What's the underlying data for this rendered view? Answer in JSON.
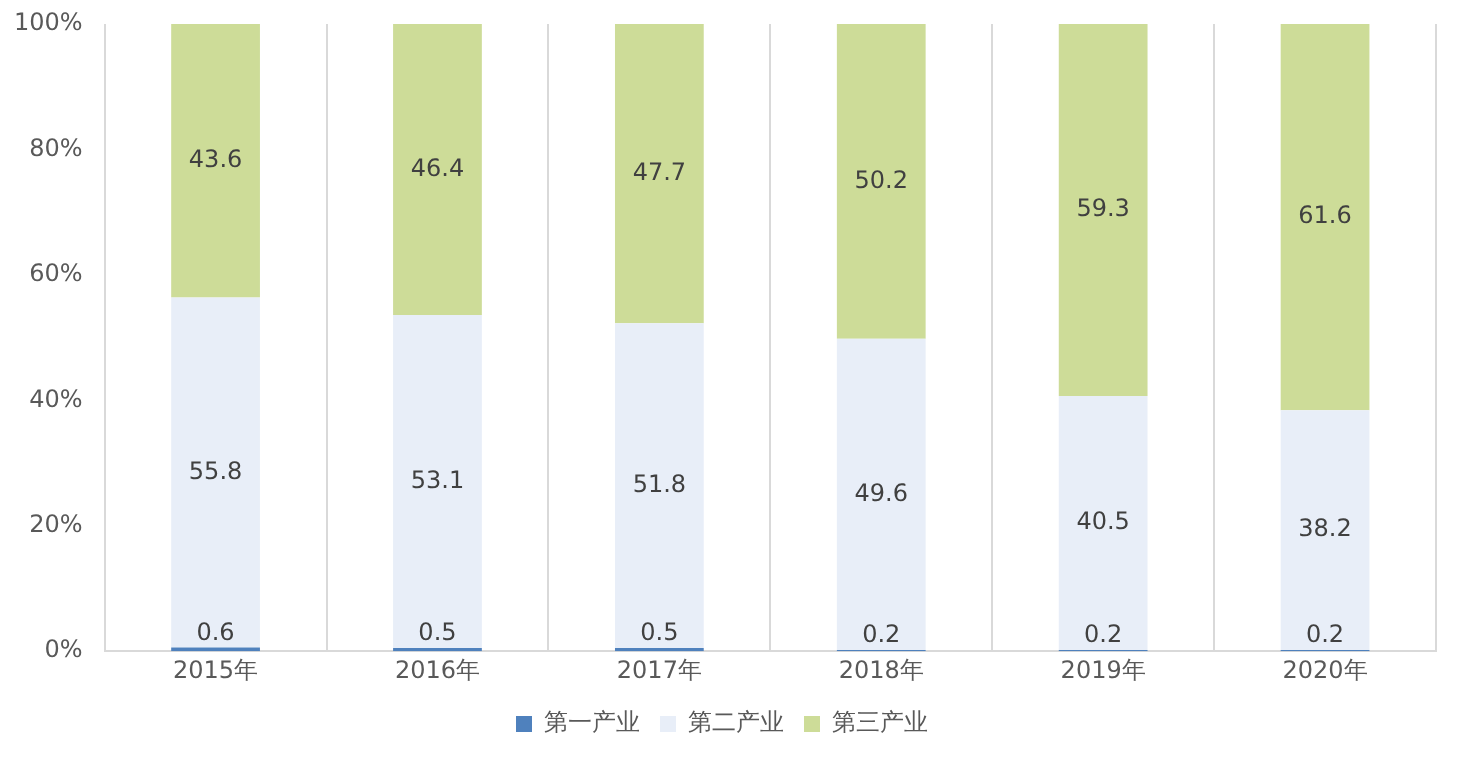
{
  "chart_data": {
    "type": "bar",
    "stacked": true,
    "categories": [
      "2015年",
      "2016年",
      "2017年",
      "2018年",
      "2019年",
      "2020年"
    ],
    "series": [
      {
        "name": "第一产业",
        "color": "#4f81bd",
        "values": [
          0.6,
          0.5,
          0.5,
          0.2,
          0.2,
          0.2
        ]
      },
      {
        "name": "第二产业",
        "color": "#e8eef8",
        "values": [
          55.8,
          53.1,
          51.8,
          49.6,
          40.5,
          38.2
        ]
      },
      {
        "name": "第三产业",
        "color": "#cddc98",
        "values": [
          43.6,
          46.4,
          47.7,
          50.2,
          59.3,
          61.6
        ]
      }
    ],
    "ylim": [
      0,
      100
    ],
    "yticks": [
      {
        "value": 0,
        "label": "0%"
      },
      {
        "value": 20,
        "label": "20%"
      },
      {
        "value": 40,
        "label": "40%"
      },
      {
        "value": 60,
        "label": "60%"
      },
      {
        "value": 80,
        "label": "80%"
      },
      {
        "value": 100,
        "label": "100%"
      }
    ],
    "grid": "x",
    "legend": "bottom",
    "data_labels": true
  }
}
